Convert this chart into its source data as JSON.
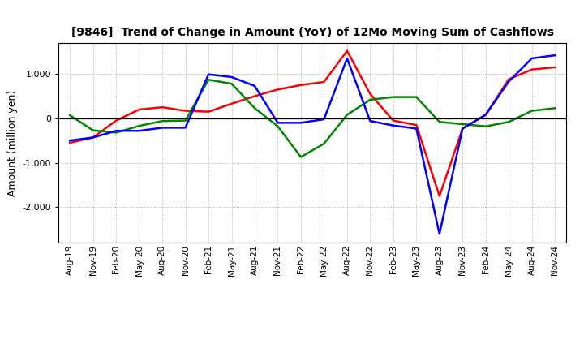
{
  "title": "[9846]  Trend of Change in Amount (YoY) of 12Mo Moving Sum of Cashflows",
  "ylabel": "Amount (million yen)",
  "x_labels": [
    "Aug-19",
    "Nov-19",
    "Feb-20",
    "May-20",
    "Aug-20",
    "Nov-20",
    "Feb-21",
    "May-21",
    "Aug-21",
    "Nov-21",
    "Feb-22",
    "May-22",
    "Aug-22",
    "Nov-22",
    "Feb-23",
    "May-23",
    "Aug-23",
    "Nov-23",
    "Feb-24",
    "May-24",
    "Aug-24",
    "Nov-24"
  ],
  "operating": [
    -550,
    -430,
    -50,
    200,
    250,
    170,
    150,
    330,
    500,
    650,
    750,
    820,
    1520,
    550,
    -50,
    -150,
    -1750,
    -230,
    80,
    880,
    1100,
    1150
  ],
  "investing": [
    70,
    -270,
    -320,
    -170,
    -60,
    -50,
    870,
    780,
    230,
    -180,
    -870,
    -570,
    80,
    420,
    480,
    480,
    -80,
    -130,
    -180,
    -80,
    170,
    230
  ],
  "free": [
    -500,
    -430,
    -280,
    -280,
    -210,
    -210,
    990,
    930,
    730,
    -100,
    -100,
    -20,
    1350,
    -60,
    -160,
    -230,
    -2600,
    -230,
    80,
    830,
    1350,
    1420
  ],
  "ylim": [
    -2800,
    1700
  ],
  "yticks": [
    -2000,
    -1000,
    0,
    1000
  ],
  "colors": {
    "operating": "#ff0000",
    "investing": "#008800",
    "free": "#0000ff"
  },
  "background": "#ffffff",
  "grid_color": "#999999"
}
